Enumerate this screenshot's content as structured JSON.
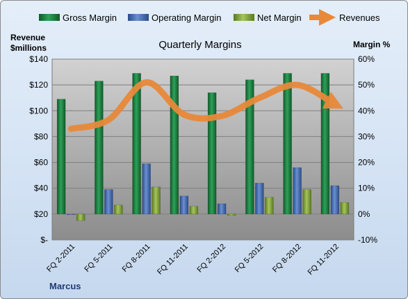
{
  "chart_data": {
    "type": "bar",
    "title": "Quarterly Margins",
    "categories": [
      "FQ 2-2011",
      "FQ 5-2011",
      "FQ 8-2011",
      "FQ 11-2011",
      "FQ 2-2012",
      "FQ 5-2012",
      "FQ 8-2012",
      "FQ 11-2012"
    ],
    "series": [
      {
        "name": "Gross Margin",
        "axis": "right",
        "unit": "%",
        "color": "#1f7a3c",
        "values": [
          44.5,
          51.5,
          54.5,
          53.5,
          47,
          52,
          54.5,
          54.5
        ]
      },
      {
        "name": "Operating Margin",
        "axis": "right",
        "unit": "%",
        "color": "#3e63a8",
        "values": [
          0,
          9.5,
          19.5,
          7,
          4,
          12,
          18,
          11
        ]
      },
      {
        "name": "Net Margin",
        "axis": "right",
        "unit": "%",
        "color": "#7a9a36",
        "values": [
          -2.5,
          3.5,
          10.5,
          3,
          -0.5,
          6.5,
          9.5,
          4.5
        ]
      },
      {
        "name": "Revenues",
        "axis": "left",
        "type": "line",
        "color": "#e8893a",
        "values": [
          86,
          93,
          122,
          97,
          96,
          110,
          120,
          105
        ]
      }
    ],
    "yleft": {
      "label": "Revenue $millions",
      "ylim": [
        0,
        140
      ],
      "ticks": [
        "$-",
        "$20",
        "$40",
        "$60",
        "$80",
        "$100",
        "$120",
        "$140"
      ]
    },
    "yright": {
      "label": "Margin %",
      "ylim": [
        -10,
        60
      ],
      "ticks": [
        "-10%",
        "0%",
        "10%",
        "20%",
        "30%",
        "40%",
        "50%",
        "60%"
      ]
    },
    "legend": {
      "placement": "top"
    },
    "grid": true
  },
  "text": {
    "title": "Quarterly Margins",
    "left_axis_title_1": "Revenue",
    "left_axis_title_2": "$millions",
    "right_axis_title": "Margin %",
    "author": "Marcus"
  }
}
